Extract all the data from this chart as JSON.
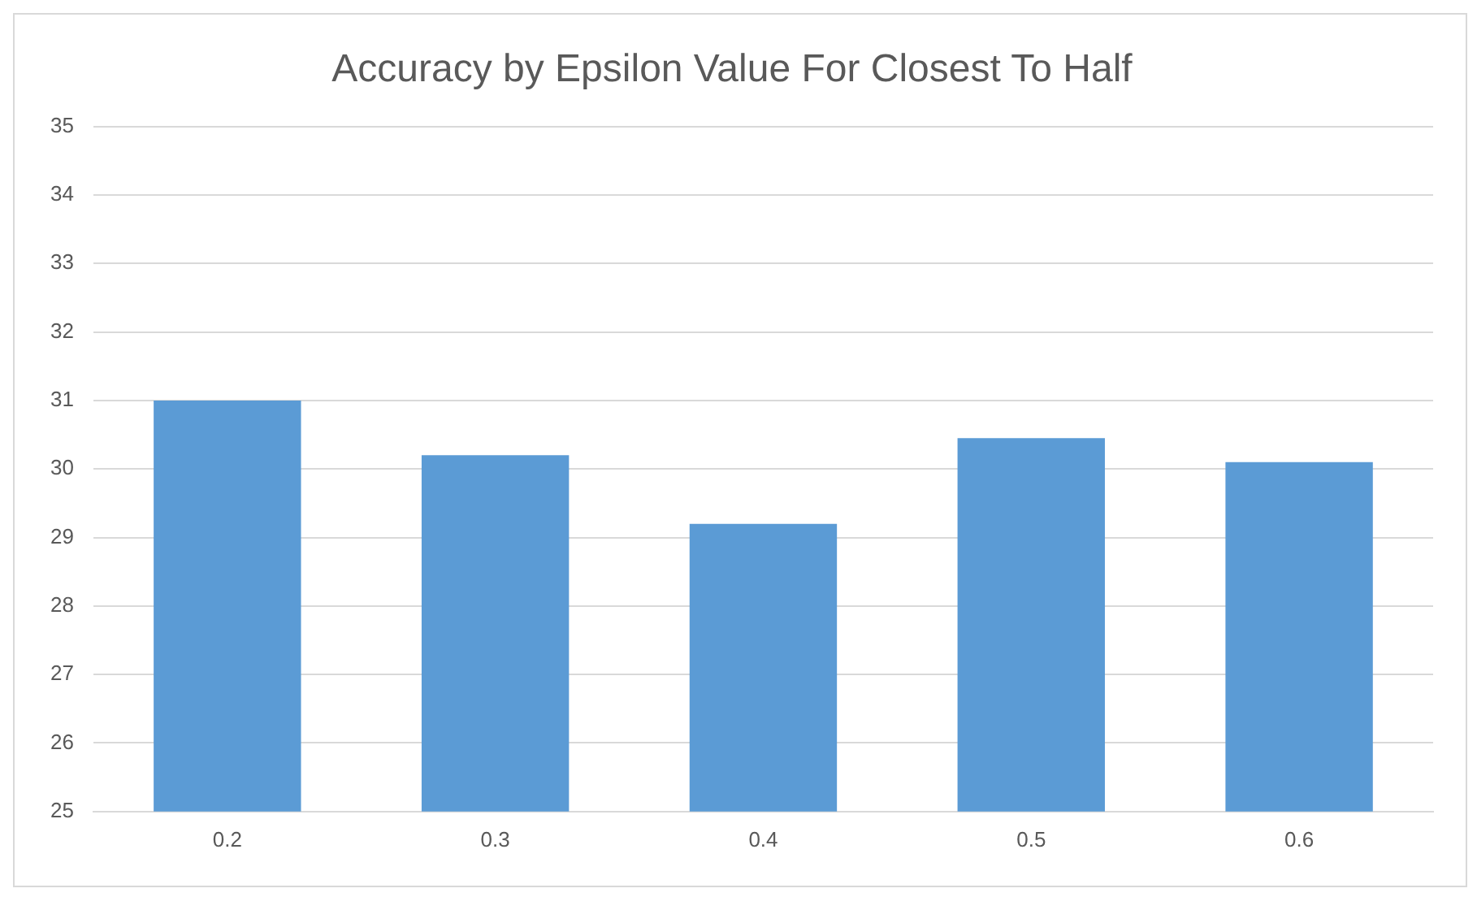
{
  "chart_data": {
    "type": "bar",
    "title": "Accuracy by Epsilon Value For Closest To Half",
    "categories": [
      "0.2",
      "0.3",
      "0.4",
      "0.5",
      "0.6"
    ],
    "values": [
      31.0,
      30.2,
      29.2,
      30.45,
      30.1
    ],
    "color": "#5b9bd5",
    "ylim": [
      25,
      35
    ],
    "yticks": [
      25,
      26,
      27,
      28,
      29,
      30,
      31,
      32,
      33,
      34,
      35
    ],
    "grid": "y",
    "legend": false
  }
}
